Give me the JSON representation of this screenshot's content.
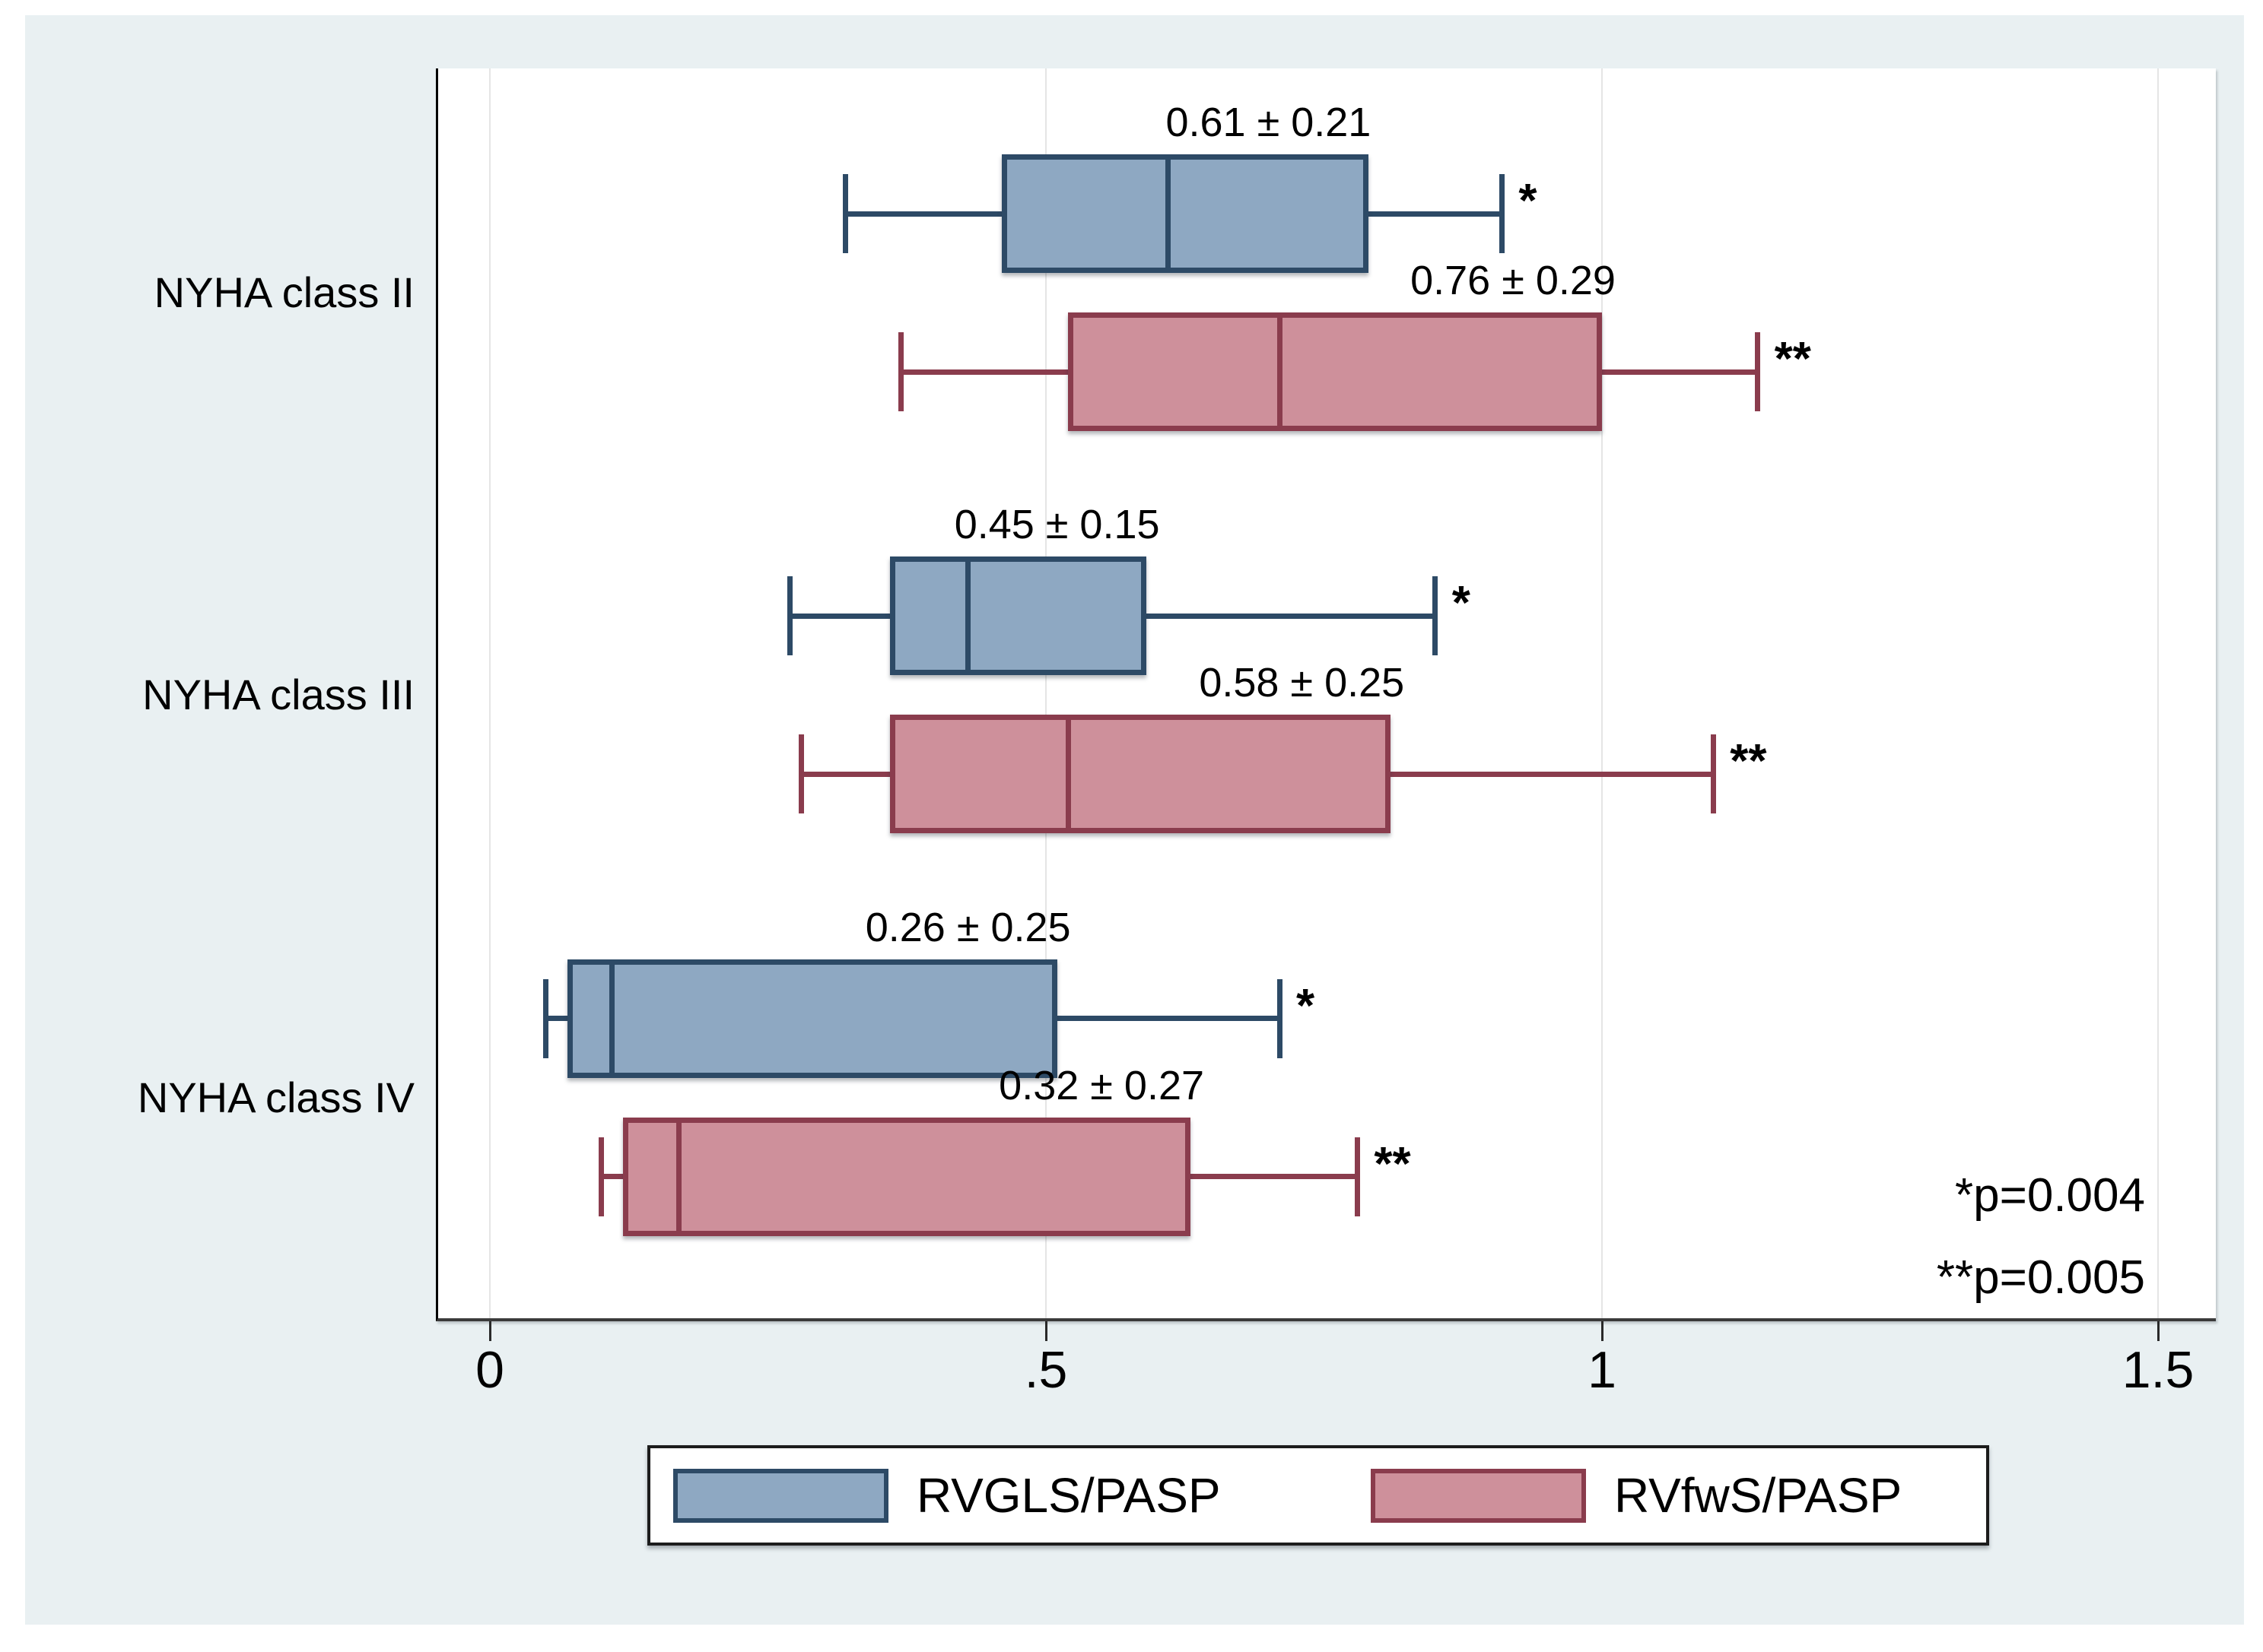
{
  "figure": {
    "canvas_bg": "#ffffff",
    "panel_bg": "#e9f0f2",
    "plot_bg": "#ffffff",
    "gridline_color": "#e5e5e5"
  },
  "chart_data": {
    "type": "boxplot",
    "orientation": "horizontal",
    "title": "",
    "xlabel": "",
    "ylabel": "",
    "grid": true,
    "legend_position": "bottom",
    "xlim": [
      -0.05,
      1.55
    ],
    "x_tick_labels": [
      "0",
      ".5",
      "1",
      "1.5"
    ],
    "x_tick_values": [
      0,
      0.5,
      1,
      1.5
    ],
    "categories": [
      "NYHA class II",
      "NYHA class III",
      "NYHA class IV"
    ],
    "series": [
      {
        "name": "RVGLS/PASP",
        "significance_marker": "*",
        "fill": "#8ea8c2",
        "stroke": "#2d4a66",
        "boxes": [
          {
            "category": "NYHA class II",
            "whisker_low": 0.32,
            "q1": 0.46,
            "median": 0.61,
            "q3": 0.79,
            "whisker_high": 0.91,
            "mean_sd_label": "0.61 ± 0.21",
            "label_x": 0.7
          },
          {
            "category": "NYHA class III",
            "whisker_low": 0.27,
            "q1": 0.36,
            "median": 0.43,
            "q3": 0.59,
            "whisker_high": 0.85,
            "mean_sd_label": "0.45 ± 0.15",
            "label_x": 0.51
          },
          {
            "category": "NYHA class IV",
            "whisker_low": 0.05,
            "q1": 0.07,
            "median": 0.11,
            "q3": 0.51,
            "whisker_high": 0.71,
            "mean_sd_label": "0.26 ± 0.25",
            "label_x": 0.43
          }
        ]
      },
      {
        "name": "RVfwS/PASP",
        "significance_marker": "**",
        "fill": "#ce909b",
        "stroke": "#8a3c4d",
        "boxes": [
          {
            "category": "NYHA class II",
            "whisker_low": 0.37,
            "q1": 0.52,
            "median": 0.71,
            "q3": 1.0,
            "whisker_high": 1.14,
            "mean_sd_label": "0.76 ± 0.29",
            "label_x": 0.92
          },
          {
            "category": "NYHA class III",
            "whisker_low": 0.28,
            "q1": 0.36,
            "median": 0.52,
            "q3": 0.81,
            "whisker_high": 1.1,
            "mean_sd_label": "0.58 ± 0.25",
            "label_x": 0.73
          },
          {
            "category": "NYHA class IV",
            "whisker_low": 0.1,
            "q1": 0.12,
            "median": 0.17,
            "q3": 0.63,
            "whisker_high": 0.78,
            "mean_sd_label": "0.32 ± 0.27",
            "label_x": 0.55
          }
        ]
      }
    ],
    "annotations": [
      "*p=0.004",
      "**p=0.005"
    ]
  },
  "legend": {
    "items": [
      {
        "label": "RVGLS/PASP",
        "fill": "#8ea8c2",
        "stroke": "#2d4a66"
      },
      {
        "label": "RVfwS/PASP",
        "fill": "#ce909b",
        "stroke": "#8a3c4d"
      }
    ]
  }
}
